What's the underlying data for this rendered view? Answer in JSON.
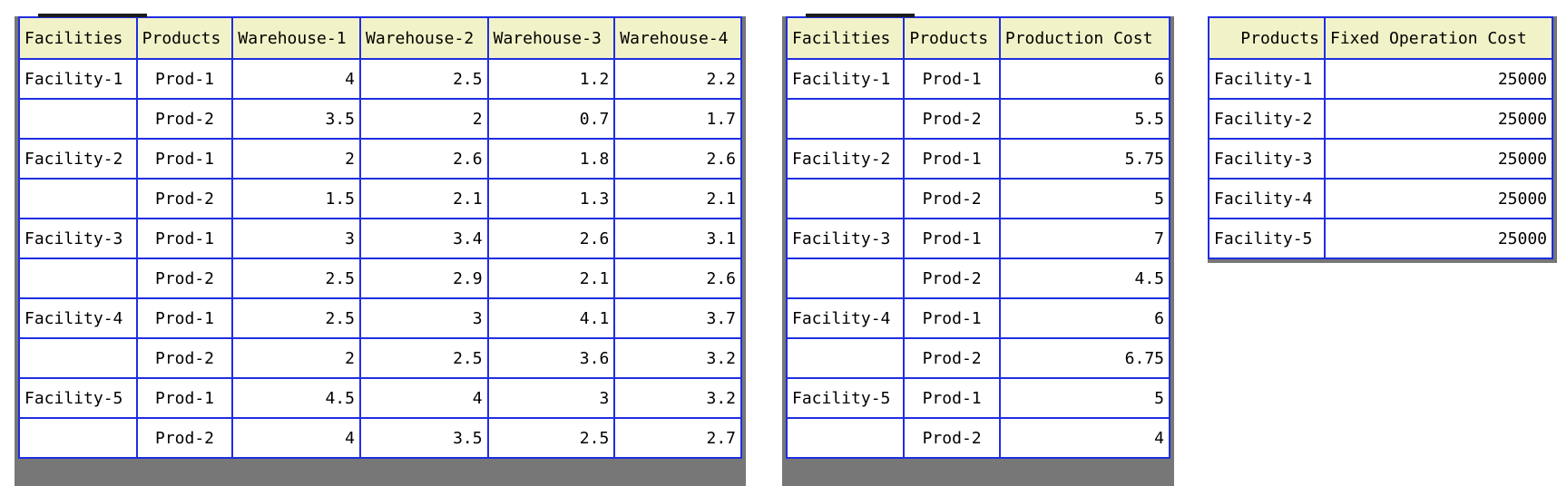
{
  "shipping_table": {
    "headers": [
      "Facilities",
      "Products",
      "Warehouse-1",
      "Warehouse-2",
      "Warehouse-3",
      "Warehouse-4"
    ],
    "rows": [
      {
        "facility": "Facility-1",
        "product": "Prod-1",
        "values": [
          "4",
          "2.5",
          "1.2",
          "2.2"
        ]
      },
      {
        "facility": "",
        "product": "Prod-2",
        "values": [
          "3.5",
          "2",
          "0.7",
          "1.7"
        ]
      },
      {
        "facility": "Facility-2",
        "product": "Prod-1",
        "values": [
          "2",
          "2.6",
          "1.8",
          "2.6"
        ]
      },
      {
        "facility": "",
        "product": "Prod-2",
        "values": [
          "1.5",
          "2.1",
          "1.3",
          "2.1"
        ]
      },
      {
        "facility": "Facility-3",
        "product": "Prod-1",
        "values": [
          "3",
          "3.4",
          "2.6",
          "3.1"
        ]
      },
      {
        "facility": "",
        "product": "Prod-2",
        "values": [
          "2.5",
          "2.9",
          "2.1",
          "2.6"
        ]
      },
      {
        "facility": "Facility-4",
        "product": "Prod-1",
        "values": [
          "2.5",
          "3",
          "4.1",
          "3.7"
        ]
      },
      {
        "facility": "",
        "product": "Prod-2",
        "values": [
          "2",
          "2.5",
          "3.6",
          "3.2"
        ]
      },
      {
        "facility": "Facility-5",
        "product": "Prod-1",
        "values": [
          "4.5",
          "4",
          "3",
          "3.2"
        ]
      },
      {
        "facility": "",
        "product": "Prod-2",
        "values": [
          "4",
          "3.5",
          "2.5",
          "2.7"
        ]
      }
    ]
  },
  "production_table": {
    "headers": [
      "Facilities",
      "Products",
      "Production Cost"
    ],
    "rows": [
      {
        "facility": "Facility-1",
        "product": "Prod-1",
        "cost": "6"
      },
      {
        "facility": "",
        "product": "Prod-2",
        "cost": "5.5"
      },
      {
        "facility": "Facility-2",
        "product": "Prod-1",
        "cost": "5.75"
      },
      {
        "facility": "",
        "product": "Prod-2",
        "cost": "5"
      },
      {
        "facility": "Facility-3",
        "product": "Prod-1",
        "cost": "7"
      },
      {
        "facility": "",
        "product": "Prod-2",
        "cost": "4.5"
      },
      {
        "facility": "Facility-4",
        "product": "Prod-1",
        "cost": "6"
      },
      {
        "facility": "",
        "product": "Prod-2",
        "cost": "6.75"
      },
      {
        "facility": "Facility-5",
        "product": "Prod-1",
        "cost": "5"
      },
      {
        "facility": "",
        "product": "Prod-2",
        "cost": "4"
      }
    ]
  },
  "fixed_cost_table": {
    "headers": [
      "Products",
      "Fixed Operation Cost"
    ],
    "rows": [
      {
        "facility": "Facility-1",
        "cost": "25000"
      },
      {
        "facility": "Facility-2",
        "cost": "25000"
      },
      {
        "facility": "Facility-3",
        "cost": "25000"
      },
      {
        "facility": "Facility-4",
        "cost": "25000"
      },
      {
        "facility": "Facility-5",
        "cost": "25000"
      }
    ]
  },
  "colors": {
    "header_bg": "#f2f2c8",
    "grid_border": "#1f2ee0",
    "panel_frame": "#777777"
  }
}
